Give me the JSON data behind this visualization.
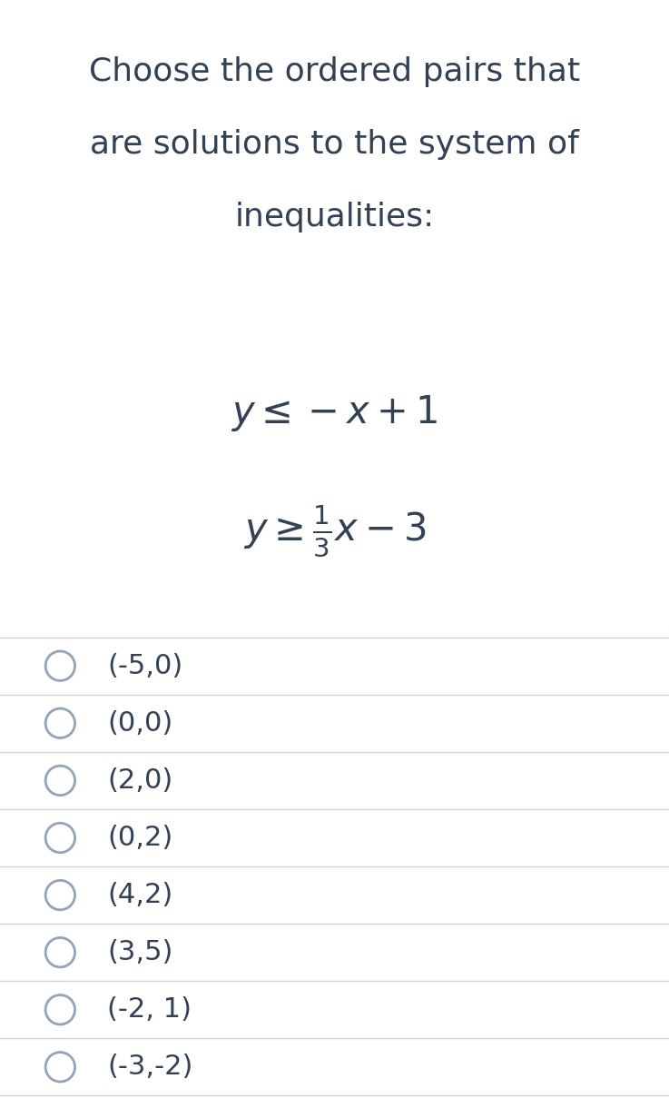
{
  "title_lines": [
    "Choose the ordered pairs that",
    "are solutions to the system of",
    "inequalities:"
  ],
  "options": [
    "(-5,0)",
    "(0,0)",
    "(2,0)",
    "(0,2)",
    "(4,2)",
    "(3,5)",
    "(-2, 1)",
    "(-3,-2)"
  ],
  "bg_color": "#ffffff",
  "text_color": "#334155",
  "line_color": "#d1d5db",
  "circle_color": "#94a3b8",
  "title_fontsize": 26,
  "ineq_fontsize": 30,
  "option_fontsize": 22,
  "figure_width": 7.37,
  "figure_height": 12.31
}
